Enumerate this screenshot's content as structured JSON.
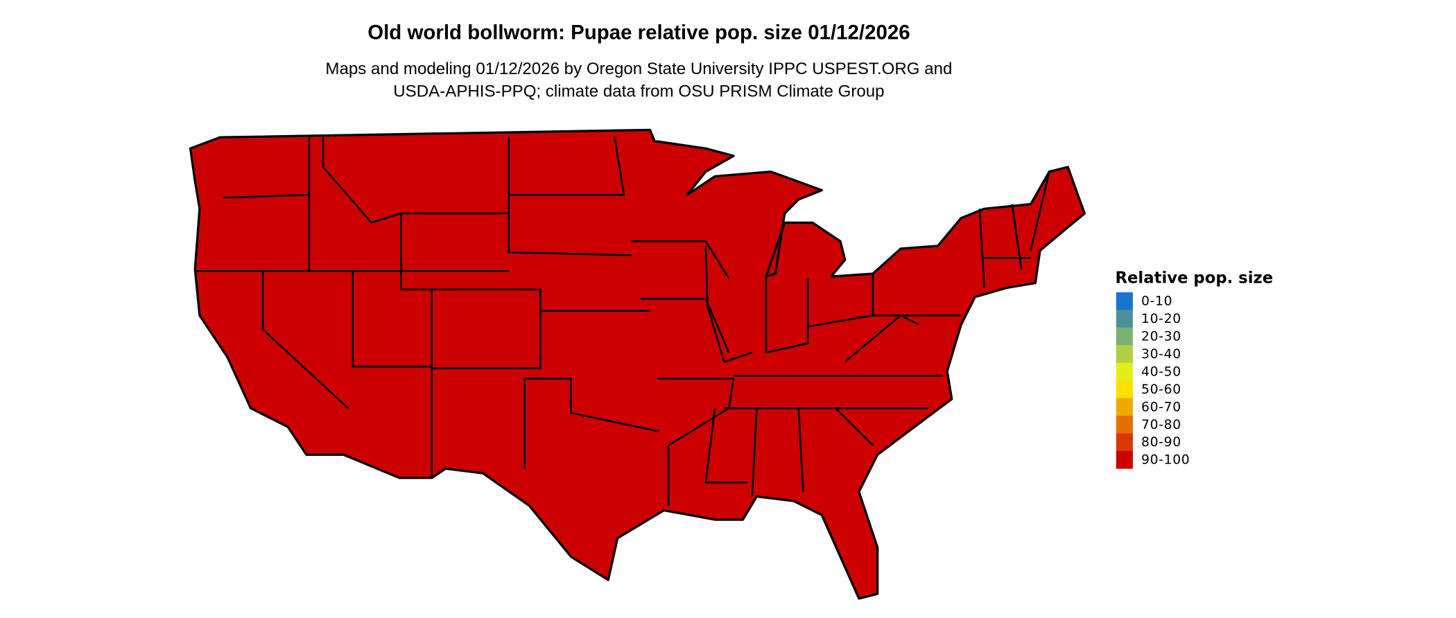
{
  "title": "Old world bollworm: Pupae relative pop. size 01/12/2026",
  "subtitle_line1": "Maps and modeling 01/12/2026 by Oregon State University IPPC USPEST.ORG and",
  "subtitle_line2": "USDA-APHIS-PPQ; climate data from OSU PRISM Climate Group",
  "map": {
    "region": "Contiguous United States",
    "fill_class": "90-100",
    "fill_color": "#cc0000",
    "boundary_color": "#000000"
  },
  "legend": {
    "title": "Relative pop. size",
    "items": [
      {
        "label": "0-10",
        "color": "#1874cd"
      },
      {
        "label": "10-20",
        "color": "#4a919b"
      },
      {
        "label": "20-30",
        "color": "#7fb073"
      },
      {
        "label": "30-40",
        "color": "#b2d046"
      },
      {
        "label": "40-50",
        "color": "#e3ef16"
      },
      {
        "label": "50-60",
        "color": "#fae100"
      },
      {
        "label": "60-70",
        "color": "#f0a800"
      },
      {
        "label": "70-80",
        "color": "#e37000"
      },
      {
        "label": "80-90",
        "color": "#db3800"
      },
      {
        "label": "90-100",
        "color": "#cc0000"
      }
    ]
  }
}
